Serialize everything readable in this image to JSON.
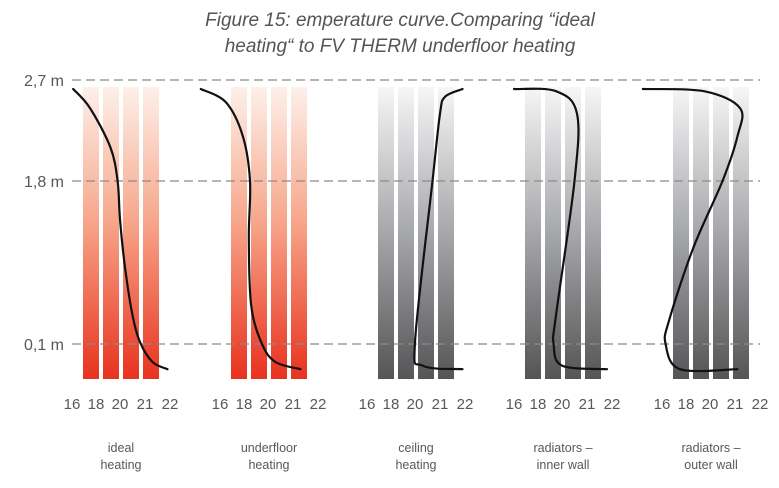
{
  "chart_data": {
    "type": "line",
    "title_line1": "Figure 15: emperature curve.Comparing “ideal",
    "title_line2": "heating“ to FV THERM underfloor heating",
    "ylabel_ticks": [
      {
        "value": 2.7,
        "label": "2,7 m"
      },
      {
        "value": 1.8,
        "label": "1,8 m"
      },
      {
        "value": 0.1,
        "label": "0,1 m"
      }
    ],
    "x_ticks": [
      16,
      18,
      20,
      21,
      22
    ],
    "x_tick_labels": [
      "16",
      "18",
      "20",
      "21",
      "22"
    ],
    "grid": "dashed horizontal at y ticks",
    "colors": {
      "warm_top": "#fde9e0",
      "warm_bottom": "#e8321e",
      "cool_top": "#f4f4f5",
      "cool_bottom": "#555557",
      "curve": "#111111",
      "grid": "#8a8a8a"
    },
    "series": [
      {
        "name_line1": "ideal",
        "name_line2": "heating",
        "palette": "warm",
        "points": [
          [
            16.1,
            2.62
          ],
          [
            17.5,
            2.45
          ],
          [
            19.2,
            2.1
          ],
          [
            19.8,
            1.8
          ],
          [
            20.0,
            1.4
          ],
          [
            20.2,
            0.9
          ],
          [
            20.5,
            0.4
          ],
          [
            20.8,
            0.12
          ],
          [
            21.3,
            0.05
          ],
          [
            21.9,
            0.03
          ]
        ]
      },
      {
        "name_line1": "underfloor",
        "name_line2": "heating",
        "palette": "warm",
        "points": [
          [
            14.4,
            2.62
          ],
          [
            16.5,
            2.5
          ],
          [
            17.9,
            2.2
          ],
          [
            18.5,
            1.8
          ],
          [
            18.4,
            1.2
          ],
          [
            18.6,
            0.5
          ],
          [
            19.5,
            0.1
          ],
          [
            20.3,
            0.05
          ],
          [
            21.3,
            0.03
          ]
        ]
      },
      {
        "name_line1": "ceiling",
        "name_line2": "heating",
        "palette": "cool",
        "points": [
          [
            21.9,
            2.62
          ],
          [
            21.2,
            2.55
          ],
          [
            21.0,
            2.4
          ],
          [
            20.7,
            1.8
          ],
          [
            20.0,
            0.12
          ],
          [
            20.3,
            0.04
          ],
          [
            21.9,
            0.03
          ]
        ]
      },
      {
        "name_line1": "radiators –",
        "name_line2": "inner wall",
        "palette": "cool",
        "points": [
          [
            16.0,
            2.62
          ],
          [
            19.5,
            2.6
          ],
          [
            20.6,
            2.4
          ],
          [
            20.5,
            1.8
          ],
          [
            19.5,
            0.4
          ],
          [
            19.3,
            0.1
          ],
          [
            20.0,
            0.04
          ],
          [
            21.8,
            0.03
          ]
        ]
      },
      {
        "name_line1": "radiators –",
        "name_line2": "outer wall",
        "palette": "cool",
        "points": [
          [
            14.4,
            2.62
          ],
          [
            19.5,
            2.6
          ],
          [
            21.2,
            2.45
          ],
          [
            21.1,
            2.2
          ],
          [
            20.5,
            1.8
          ],
          [
            18.6,
            1.1
          ],
          [
            16.6,
            0.35
          ],
          [
            16.3,
            0.1
          ],
          [
            17.5,
            0.03
          ],
          [
            21.1,
            0.03
          ]
        ]
      }
    ]
  }
}
